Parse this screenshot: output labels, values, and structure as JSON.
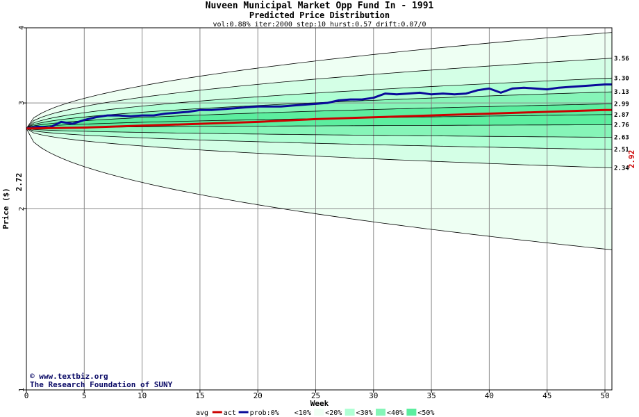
{
  "chart_data": {
    "type": "area",
    "title": "Nuveen Municipal Market Opp Fund In - 1991",
    "subtitle": "Predicted Price Distribution",
    "params": "vol:0.88% iter:2000 step:10 hurst:0.57 drift:0.07/0",
    "xlabel": "Week",
    "ylabel": "Price ($)",
    "scale": "log",
    "xlim": [
      0,
      50.6
    ],
    "ylim": [
      1,
      4
    ],
    "x_ticks": [
      0,
      5,
      10,
      15,
      20,
      25,
      30,
      35,
      40,
      45,
      50
    ],
    "y_ticks": [
      1,
      2,
      3,
      4
    ],
    "grid": true,
    "start_price": 2.72,
    "start_label": "2.72",
    "final_actual": 2.92,
    "final_actual_label": "2.92",
    "end_labels": [
      {
        "value": 3.56,
        "label": "3.56"
      },
      {
        "value": 3.3,
        "label": "3.30"
      },
      {
        "value": 3.13,
        "label": "3.13"
      },
      {
        "value": 2.99,
        "label": "2.99"
      },
      {
        "value": 2.87,
        "label": "2.87"
      },
      {
        "value": 2.76,
        "label": "2.76"
      },
      {
        "value": 2.63,
        "label": "2.63"
      },
      {
        "value": 2.51,
        "label": "2.51"
      },
      {
        "value": 2.34,
        "label": "2.34"
      }
    ],
    "band_boundaries_end": [
      3.93,
      3.56,
      3.3,
      3.13,
      2.99,
      2.87,
      2.76,
      2.63,
      2.51,
      2.34,
      1.71
    ],
    "band_colors": [
      "#eefff3",
      "#d4ffe6",
      "#b0ffd4",
      "#86f5b8",
      "#5cee9f"
    ],
    "series": [
      {
        "name": "avg",
        "color": "#0a0a99",
        "x": [
          0,
          1,
          2,
          3,
          4,
          5,
          6,
          7,
          8,
          9,
          10,
          11,
          12,
          13,
          14,
          15,
          16,
          17,
          18,
          19,
          20,
          21,
          22,
          23,
          24,
          25,
          26,
          27,
          28,
          29,
          30,
          31,
          32,
          33,
          34,
          35,
          36,
          37,
          38,
          39,
          40,
          41,
          42,
          43,
          44,
          45,
          46,
          47,
          48,
          49,
          50,
          50.6
        ],
        "values": [
          2.72,
          2.74,
          2.73,
          2.79,
          2.77,
          2.81,
          2.84,
          2.86,
          2.86,
          2.85,
          2.86,
          2.86,
          2.88,
          2.89,
          2.9,
          2.92,
          2.92,
          2.93,
          2.94,
          2.95,
          2.96,
          2.96,
          2.96,
          2.97,
          2.98,
          2.99,
          3.0,
          3.03,
          3.04,
          3.04,
          3.06,
          3.11,
          3.1,
          3.11,
          3.12,
          3.1,
          3.11,
          3.1,
          3.11,
          3.15,
          3.17,
          3.12,
          3.17,
          3.18,
          3.17,
          3.16,
          3.18,
          3.19,
          3.2,
          3.21,
          3.22,
          3.22
        ]
      },
      {
        "name": "act",
        "color": "#cc0000",
        "x": [
          0,
          5,
          10,
          15,
          20,
          25,
          30,
          35,
          40,
          45,
          50,
          50.6
        ],
        "values": [
          2.72,
          2.73,
          2.75,
          2.77,
          2.79,
          2.82,
          2.84,
          2.86,
          2.88,
          2.9,
          2.92,
          2.92
        ]
      }
    ],
    "legend": [
      {
        "label": "avg",
        "kind": "text"
      },
      {
        "label": "act",
        "kind": "line",
        "color": "#cc0000"
      },
      {
        "label": "prob:0%",
        "kind": "line",
        "color": "#0a0a99"
      },
      {
        "label": "<10%",
        "kind": "box",
        "color": "#ffffff"
      },
      {
        "label": "<20%",
        "kind": "box",
        "color": "#eefff3"
      },
      {
        "label": "<30%",
        "kind": "box",
        "color": "#b0ffd4"
      },
      {
        "label": "<40%",
        "kind": "box",
        "color": "#86f5b8"
      },
      {
        "label": "<50%",
        "kind": "box",
        "color": "#5cee9f"
      }
    ]
  },
  "credits": {
    "site": "www.textbiz.org",
    "org": "The Research Foundation of SUNY"
  }
}
